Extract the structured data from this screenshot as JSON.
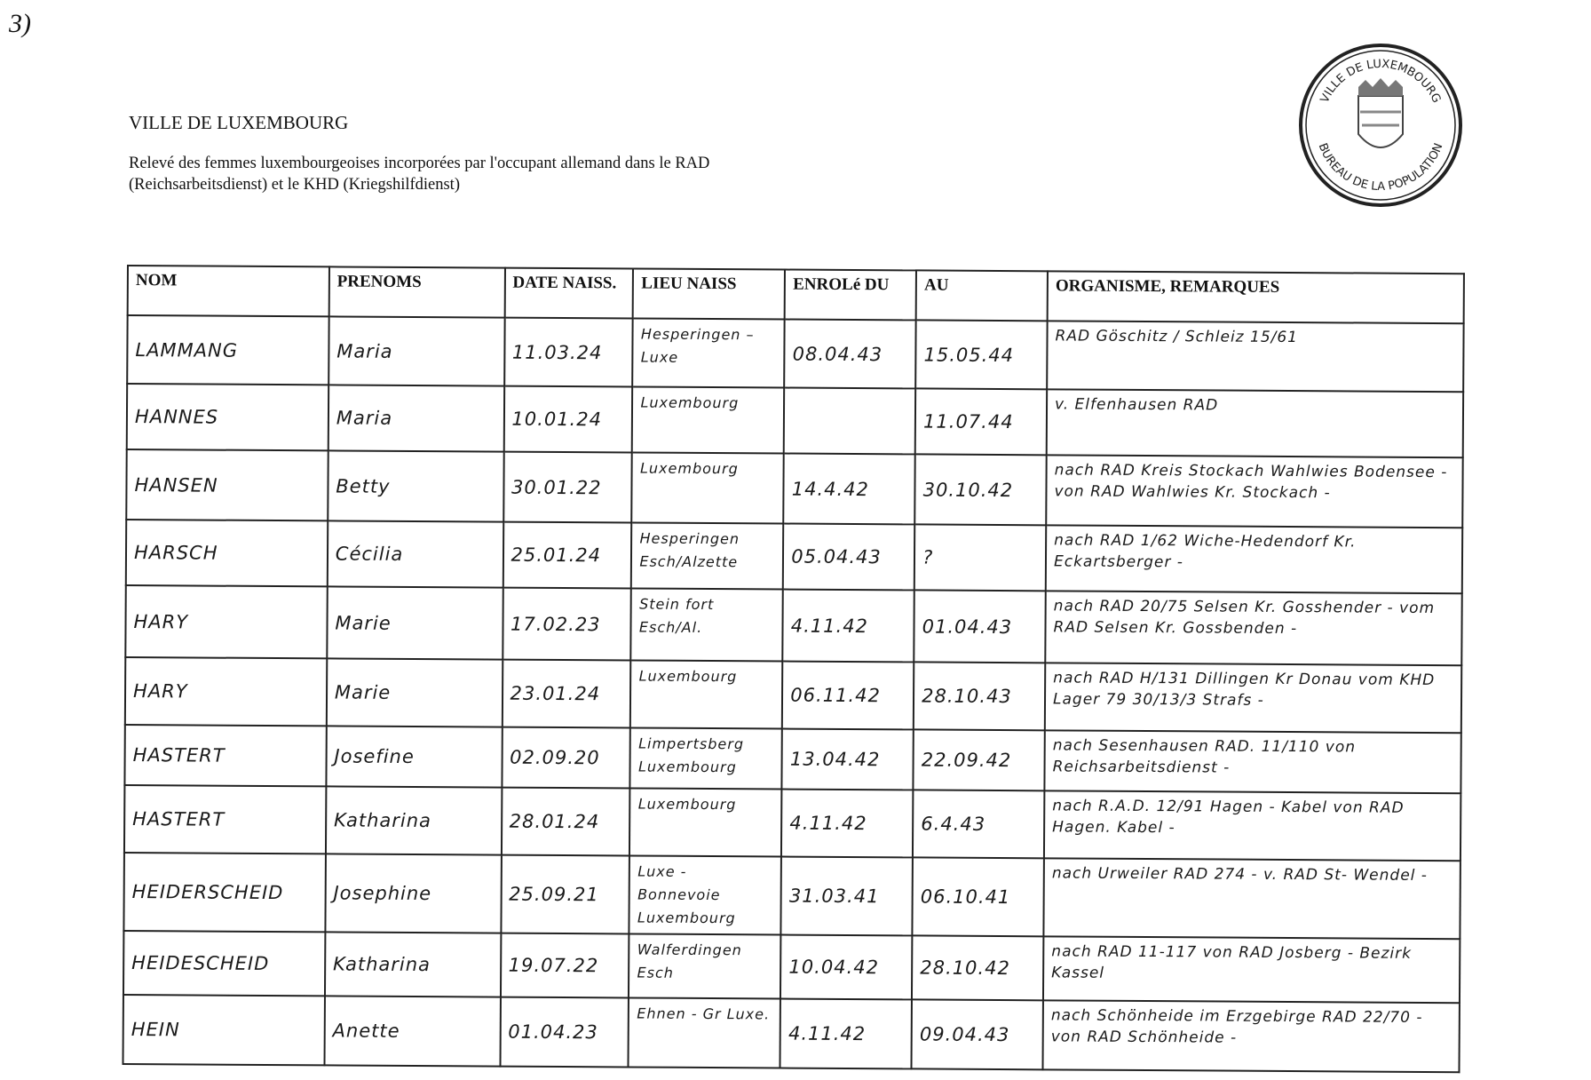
{
  "page_mark": "3)",
  "header": {
    "title": "VILLE DE LUXEMBOURG",
    "subtitle": "Relevé des femmes luxembourgeoises incorporées par l'occupant allemand dans le RAD (Reichsarbeitsdienst) et le KHD (Kriegshilfdienst)"
  },
  "stamp": {
    "text_top": "VILLE DE LUXEMBOURG",
    "text_bottom": "BUREAU DE LA POPULATION"
  },
  "table": {
    "columns": [
      "NOM",
      "PRENOMS",
      "DATE NAISS.",
      "LIEU NAISS",
      "ENROLé DU",
      "AU",
      "ORGANISME, REMARQUES"
    ],
    "rows": [
      {
        "nom": "LAMMANG",
        "prenom": "Maria",
        "date": "11.03.24",
        "lieu": "Hesperingen – Luxe",
        "du": "08.04.43",
        "au": "15.05.44",
        "remarques": "RAD Göschitz / Schleiz 15/61"
      },
      {
        "nom": "HANNES",
        "prenom": "Maria",
        "date": "10.01.24",
        "lieu": "Luxembourg",
        "du": "",
        "au": "11.07.44",
        "remarques": "v. Elfenhausen RAD"
      },
      {
        "nom": "HANSEN",
        "prenom": "Betty",
        "date": "30.01.22",
        "lieu": "Luxembourg",
        "du": "14.4.42",
        "au": "30.10.42",
        "remarques": "nach RAD Kreis Stockach Wahlwies Bodensee - von RAD Wahlwies Kr. Stockach -"
      },
      {
        "nom": "HARSCH",
        "prenom": "Cécilia",
        "date": "25.01.24",
        "lieu": "Hesperingen Esch/Alzette",
        "du": "05.04.43",
        "au": "?",
        "remarques": "nach RAD 1/62 Wiche-Hedendorf Kr. Eckartsberger -"
      },
      {
        "nom": "HARY",
        "prenom": "Marie",
        "date": "17.02.23",
        "lieu": "Stein fort Esch/Al.",
        "du": "4.11.42",
        "au": "01.04.43",
        "remarques": "nach RAD 20/75 Selsen Kr. Gosshender - vom RAD Selsen Kr. Gossbenden -"
      },
      {
        "nom": "HARY",
        "prenom": "Marie",
        "date": "23.01.24",
        "lieu": "Luxembourg",
        "du": "06.11.42",
        "au": "28.10.43",
        "remarques": "nach RAD H/131 Dillingen Kr Donau vom KHD Lager 79 30/13/3 Strafs -"
      },
      {
        "nom": "HASTERT",
        "prenom": "Josefine",
        "date": "02.09.20",
        "lieu": "Limpertsberg Luxembourg",
        "du": "13.04.42",
        "au": "22.09.42",
        "remarques": "nach Sesenhausen RAD. 11/110 von Reichsarbeitsdienst -"
      },
      {
        "nom": "HASTERT",
        "prenom": "Katharina",
        "date": "28.01.24",
        "lieu": "Luxembourg",
        "du": "4.11.42",
        "au": "6.4.43",
        "remarques": "nach R.A.D. 12/91 Hagen - Kabel von RAD Hagen. Kabel -"
      },
      {
        "nom": "HEIDERSCHEID",
        "prenom": "Josephine",
        "date": "25.09.21",
        "lieu": "Luxe - Bonnevoie Luxembourg",
        "du": "31.03.41",
        "au": "06.10.41",
        "remarques": "nach Urweiler RAD 274 - v. RAD St- Wendel -"
      },
      {
        "nom": "HEIDESCHEID",
        "prenom": "Katharina",
        "date": "19.07.22",
        "lieu": "Walferdingen Esch",
        "du": "10.04.42",
        "au": "28.10.42",
        "remarques": "nach RAD 11-117 von RAD Josberg - Bezirk Kassel"
      },
      {
        "nom": "HEIN",
        "prenom": "Anette",
        "date": "01.04.23",
        "lieu": "Ehnen - Gr Luxe.",
        "du": "4.11.42",
        "au": "09.04.43",
        "remarques": "nach Schönheide im Erzgebirge RAD 22/70 - von RAD Schönheide -"
      }
    ]
  }
}
